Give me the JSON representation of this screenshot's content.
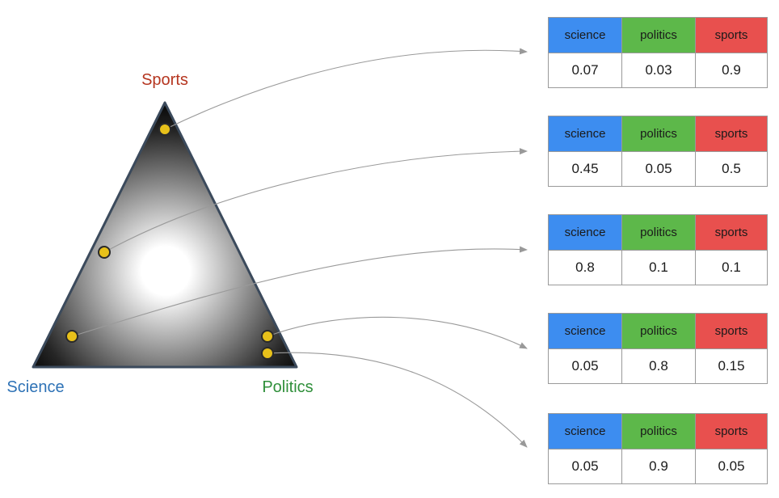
{
  "corners": {
    "sports": "Sports",
    "science": "Science",
    "politics": "Politics"
  },
  "colors": {
    "science": "#3d8df0",
    "politics": "#5db84a",
    "sports": "#e8504e",
    "sports_label": "#b5351f",
    "science_label": "#2e72b6",
    "politics_label": "#2f8f3a",
    "point": "#e8c11a"
  },
  "tables": [
    {
      "headers": [
        "science",
        "politics",
        "sports"
      ],
      "values": [
        "0.07",
        "0.03",
        "0.9"
      ]
    },
    {
      "headers": [
        "science",
        "politics",
        "sports"
      ],
      "values": [
        "0.45",
        "0.05",
        "0.5"
      ]
    },
    {
      "headers": [
        "science",
        "politics",
        "sports"
      ],
      "values": [
        "0.8",
        "0.1",
        "0.1"
      ]
    },
    {
      "headers": [
        "science",
        "politics",
        "sports"
      ],
      "values": [
        "0.05",
        "0.8",
        "0.15"
      ]
    },
    {
      "headers": [
        "science",
        "politics",
        "sports"
      ],
      "values": [
        "0.05",
        "0.9",
        "0.05"
      ]
    }
  ]
}
